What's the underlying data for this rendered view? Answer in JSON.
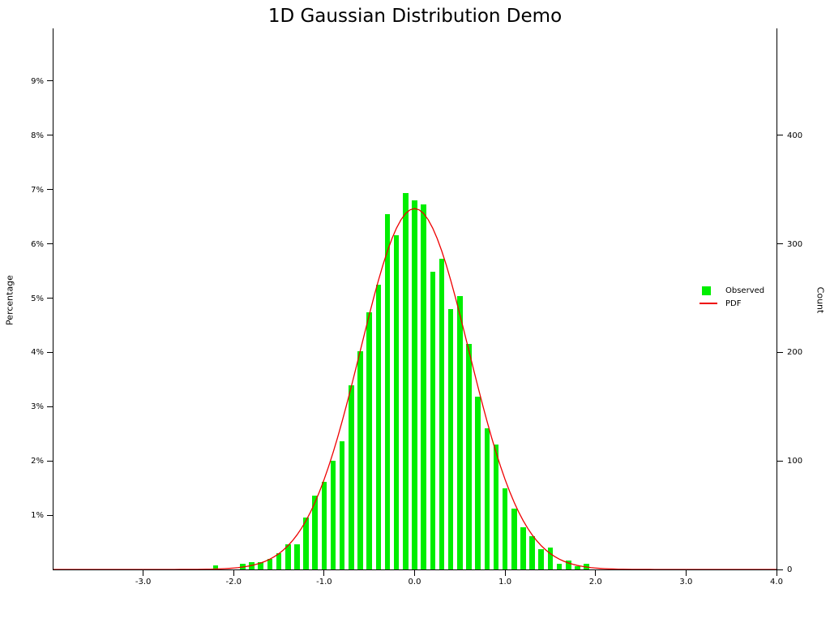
{
  "title": "1D Gaussian Distribution Demo",
  "colors": {
    "background": "#ffffff",
    "axis": "#000000",
    "bar_green": "#00ee00",
    "pdf_red": "#ee0000"
  },
  "legend": {
    "items": [
      {
        "label": "Observed",
        "swatch": "square",
        "color": "#00ee00"
      },
      {
        "label": "PDF",
        "swatch": "line",
        "color": "#ee0000"
      }
    ]
  },
  "chart_data": {
    "type": "bar",
    "title": "1D Gaussian Distribution Demo",
    "xlabel": "",
    "ylabel_left": "Percentage",
    "ylabel_right": "Count",
    "xlim": [
      -4.0,
      4.0
    ],
    "ylim_left_percent": [
      0,
      9.97
    ],
    "ylim_right_count": [
      0,
      498
    ],
    "grid": false,
    "legend_position": "center-right",
    "bin_width": 0.1,
    "categories": [
      -2.2,
      -2.1,
      -2.0,
      -1.9,
      -1.8,
      -1.7,
      -1.6,
      -1.5,
      -1.4,
      -1.3,
      -1.2,
      -1.1,
      -1.0,
      -0.9,
      -0.8,
      -0.7,
      -0.6,
      -0.5,
      -0.4,
      -0.3,
      -0.2,
      -0.1,
      0.0,
      0.1,
      0.2,
      0.3,
      0.4,
      0.5,
      0.6,
      0.7,
      0.8,
      0.9,
      1.0,
      1.1,
      1.2,
      1.3,
      1.4,
      1.5,
      1.6,
      1.7,
      1.8,
      1.9
    ],
    "series": [
      {
        "name": "Observed",
        "type": "bar",
        "color": "#00ee00",
        "unit": "percent",
        "values_pct": [
          0.08,
          0,
          0,
          0.1,
          0.14,
          0.14,
          0.2,
          0.3,
          0.46,
          0.46,
          0.95,
          1.36,
          1.62,
          2.0,
          2.36,
          3.4,
          4.02,
          4.74,
          5.24,
          6.54,
          6.16,
          6.94,
          6.8,
          6.72,
          5.48,
          5.72,
          4.8,
          5.04,
          4.16,
          3.18,
          2.6,
          2.3,
          1.5,
          1.12,
          0.78,
          0.62,
          0.38,
          0.4,
          0.1,
          0.16,
          0.06,
          0.1
        ]
      },
      {
        "name": "PDF",
        "type": "line",
        "color": "#ee0000",
        "gaussian": {
          "mu": 0.0,
          "sigma": 0.6,
          "peak_pct": 6.65
        },
        "x_range": [
          -4.0,
          4.0
        ]
      }
    ],
    "xticks": [
      {
        "v": -3,
        "label": "-3.0"
      },
      {
        "v": -2,
        "label": "-2.0"
      },
      {
        "v": -1,
        "label": "-1.0"
      },
      {
        "v": 0,
        "label": "0.0"
      },
      {
        "v": 1,
        "label": "1.0"
      },
      {
        "v": 2,
        "label": "2.0"
      },
      {
        "v": 3,
        "label": "3.0"
      },
      {
        "v": 4,
        "label": "4.0"
      }
    ],
    "yticks_left": [
      {
        "v": 1,
        "label": "1%"
      },
      {
        "v": 2,
        "label": "2%"
      },
      {
        "v": 3,
        "label": "3%"
      },
      {
        "v": 4,
        "label": "4%"
      },
      {
        "v": 5,
        "label": "5%"
      },
      {
        "v": 6,
        "label": "6%"
      },
      {
        "v": 7,
        "label": "7%"
      },
      {
        "v": 8,
        "label": "8%"
      },
      {
        "v": 9,
        "label": "9%"
      }
    ],
    "yticks_right": [
      {
        "v": 0,
        "label": "0"
      },
      {
        "v": 100,
        "label": "100"
      },
      {
        "v": 200,
        "label": "200"
      },
      {
        "v": 300,
        "label": "300"
      },
      {
        "v": 400,
        "label": "400"
      }
    ]
  }
}
